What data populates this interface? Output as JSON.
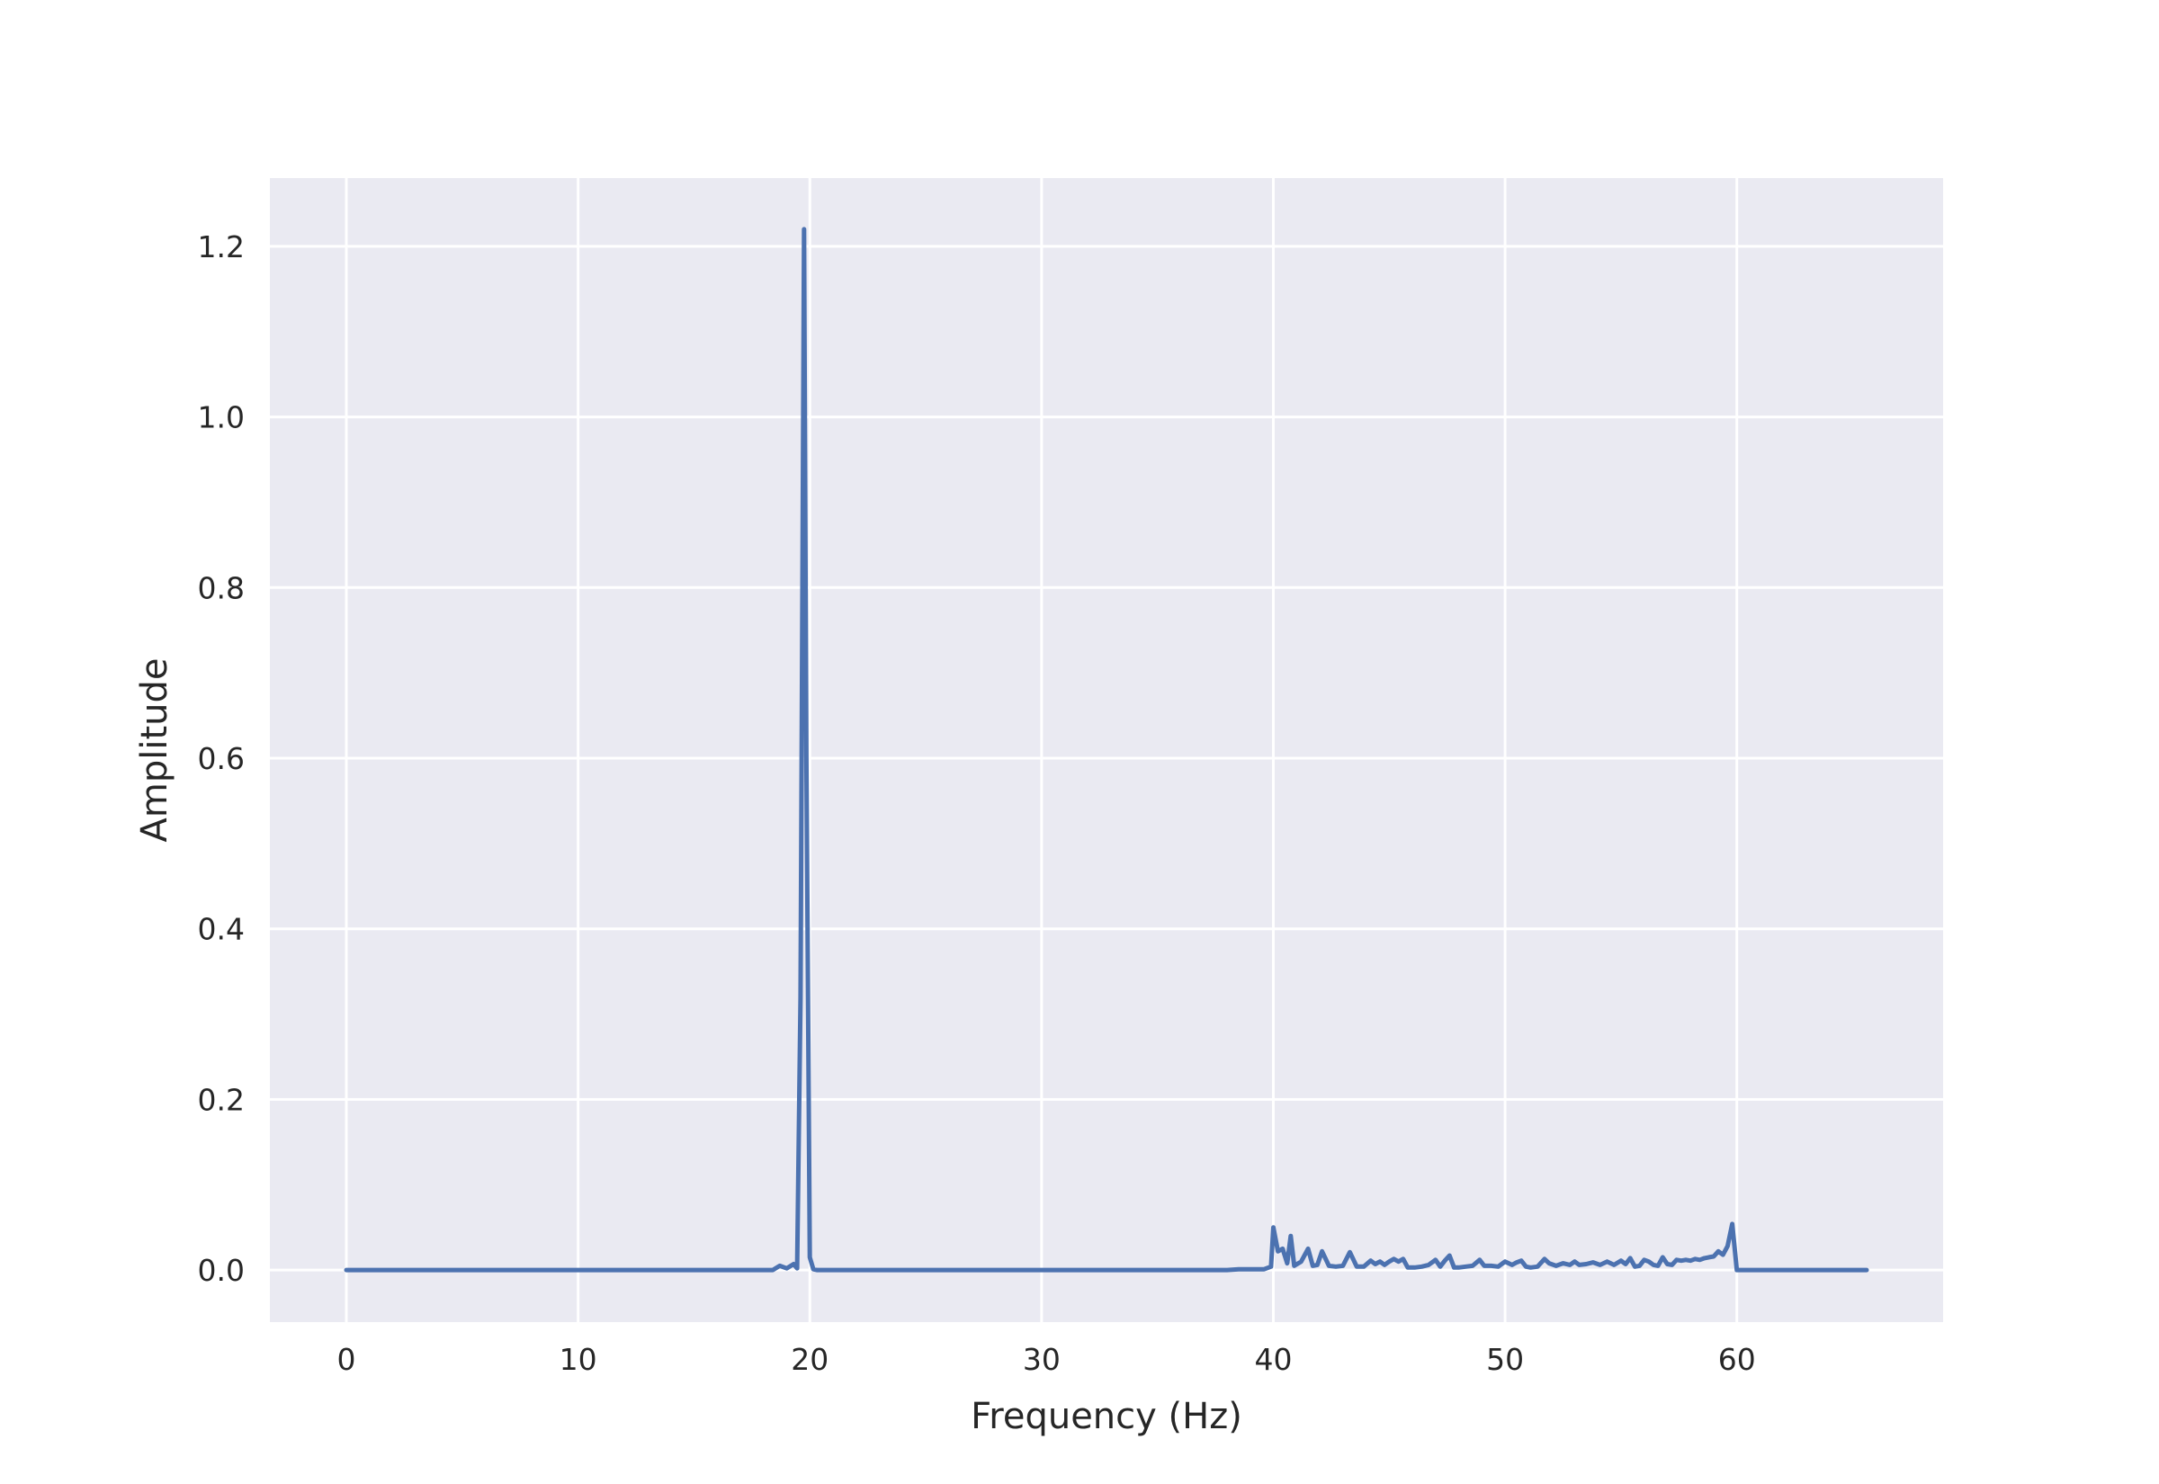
{
  "chart_data": {
    "type": "line",
    "title": "",
    "xlabel": "Frequency (Hz)",
    "ylabel": "Amplitude",
    "xlim": [
      -3.3,
      68.9
    ],
    "ylim": [
      -0.061,
      1.28
    ],
    "xticks": [
      0,
      10,
      20,
      30,
      40,
      50,
      60
    ],
    "xtick_labels": [
      "0",
      "10",
      "20",
      "30",
      "40",
      "50",
      "60"
    ],
    "yticks": [
      0.0,
      0.2,
      0.4,
      0.6,
      0.8,
      1.0,
      1.2
    ],
    "ytick_labels": [
      "0.0",
      "0.2",
      "0.4",
      "0.6",
      "0.8",
      "1.0",
      "1.2"
    ],
    "grid": true,
    "colors": {
      "background": "#EAEAF2",
      "grid": "#FFFFFF",
      "line": "#4C72B0",
      "text": "#262626"
    },
    "series": [
      {
        "x": [
          0,
          18.4,
          18.7,
          19.0,
          19.3,
          19.45,
          19.6,
          19.75,
          19.85,
          20.0,
          20.15,
          20.3,
          20.5,
          38.0,
          38.5,
          39.6,
          39.9,
          40.0,
          40.2,
          40.4,
          40.6,
          40.75,
          40.9,
          41.2,
          41.5,
          41.7,
          41.9,
          42.1,
          42.4,
          42.7,
          43.0,
          43.3,
          43.6,
          43.9,
          44.2,
          44.4,
          44.6,
          44.8,
          45.0,
          45.2,
          45.4,
          45.6,
          45.8,
          46.1,
          46.4,
          46.7,
          47.0,
          47.2,
          47.4,
          47.6,
          47.8,
          48.0,
          48.3,
          48.6,
          48.9,
          49.1,
          49.4,
          49.7,
          50.0,
          50.3,
          50.5,
          50.7,
          50.9,
          51.1,
          51.4,
          51.7,
          51.9,
          52.2,
          52.5,
          52.8,
          53.0,
          53.2,
          53.5,
          53.8,
          54.1,
          54.4,
          54.7,
          55.0,
          55.2,
          55.4,
          55.6,
          55.8,
          56.0,
          56.2,
          56.4,
          56.6,
          56.8,
          57.0,
          57.2,
          57.4,
          57.6,
          57.8,
          58.0,
          58.2,
          58.4,
          58.6,
          58.8,
          59.0,
          59.2,
          59.4,
          59.6,
          59.8,
          60.0,
          60.2,
          65.6
        ],
        "y": [
          0,
          0.0,
          0.005,
          0.002,
          0.007,
          0.002,
          0.32,
          1.22,
          0.6,
          0.015,
          0.001,
          0,
          0,
          0.0,
          0.001,
          0.001,
          0.004,
          0.05,
          0.022,
          0.025,
          0.008,
          0.04,
          0.005,
          0.01,
          0.025,
          0.005,
          0.006,
          0.022,
          0.005,
          0.004,
          0.005,
          0.021,
          0.004,
          0.004,
          0.011,
          0.007,
          0.01,
          0.006,
          0.01,
          0.013,
          0.01,
          0.013,
          0.003,
          0.003,
          0.004,
          0.006,
          0.012,
          0.004,
          0.011,
          0.017,
          0.003,
          0.003,
          0.004,
          0.005,
          0.012,
          0.005,
          0.005,
          0.004,
          0.01,
          0.006,
          0.009,
          0.011,
          0.004,
          0.003,
          0.004,
          0.013,
          0.008,
          0.005,
          0.008,
          0.006,
          0.01,
          0.006,
          0.007,
          0.009,
          0.006,
          0.01,
          0.006,
          0.011,
          0.007,
          0.014,
          0.004,
          0.005,
          0.012,
          0.01,
          0.006,
          0.005,
          0.015,
          0.007,
          0.006,
          0.012,
          0.011,
          0.012,
          0.011,
          0.013,
          0.012,
          0.014,
          0.015,
          0.016,
          0.022,
          0.018,
          0.028,
          0.054,
          0.0,
          0.0,
          0.0
        ]
      }
    ]
  }
}
